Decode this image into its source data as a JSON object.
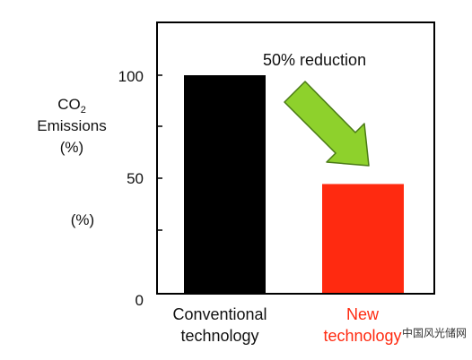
{
  "chart_data": {
    "type": "bar",
    "categories": [
      {
        "line1": "Conventional",
        "line2": "technology"
      },
      {
        "line1": "New",
        "line2": "technology"
      }
    ],
    "values": [
      100,
      50
    ],
    "bar_colors": [
      "#000000",
      "#ff2a10"
    ],
    "category_label_colors": [
      "#111111",
      "#ff2a10"
    ],
    "ylim": [
      0,
      125
    ],
    "yticks": [
      "0",
      "50",
      "100"
    ],
    "ylabel": {
      "main": "CO",
      "sub": "2",
      "line2": "Emissions",
      "line3": "(%)"
    },
    "extra_label": "(%)",
    "annotation": "50% reduction",
    "arrow_color": "#8ed12c",
    "grid": false
  },
  "watermark": "中国风光储网"
}
